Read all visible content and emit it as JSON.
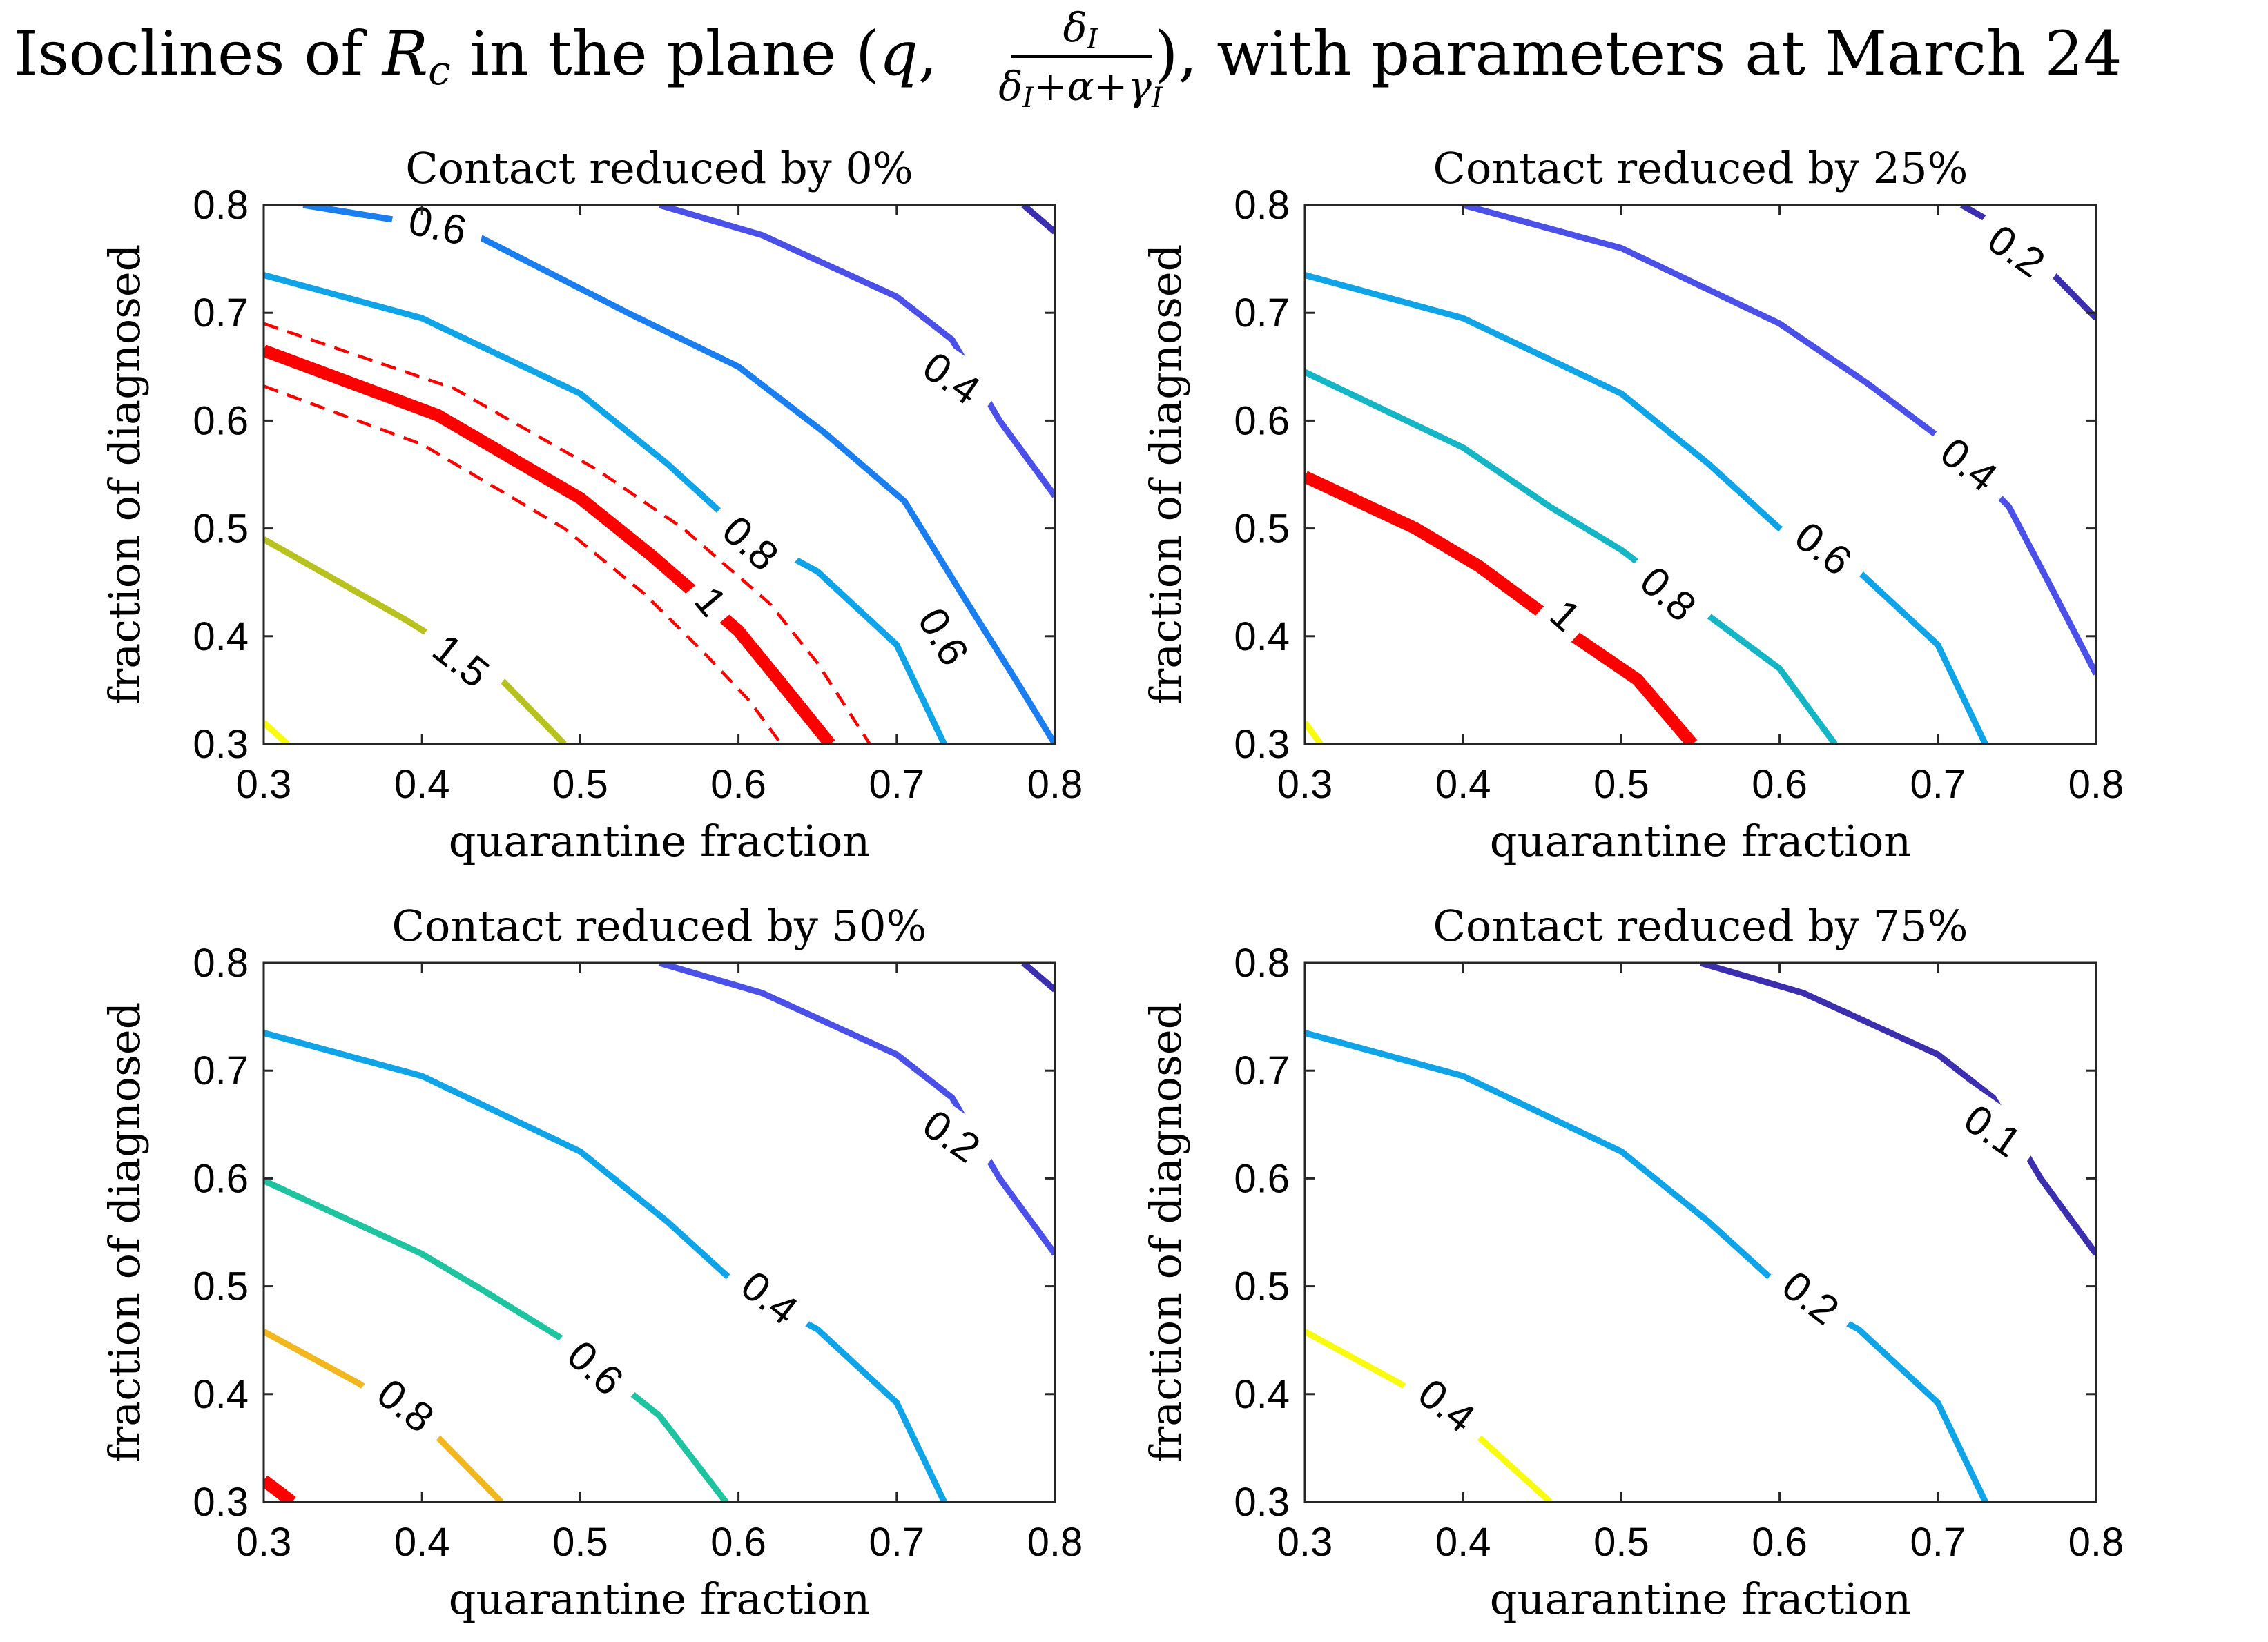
{
  "figure": {
    "title_prefix": "Isoclines of ",
    "title_symbol_R": "R",
    "title_symbol_sub": "c",
    "title_mid": " in the plane (",
    "title_q": "q",
    "title_comma": ", ",
    "frac_numerator": "δ",
    "frac_numerator_sub": "I",
    "frac_denominator": "δ",
    "frac_denominator_sub1": "I",
    "frac_denominator_rest": "+α+γ",
    "frac_denominator_sub2": "I",
    "title_suffix": "), with parameters at March 24"
  },
  "colors": {
    "red": "#ff0000",
    "yellow": "#f9fb0e",
    "olive": "#b8c21e",
    "blue_light": "#0fa3e8",
    "blue": "#1a7ef0",
    "cyan": "#14b6c6",
    "teal": "#1ec3a0",
    "orange": "#f2b61e",
    "violet": "#4a50e8",
    "indigo": "#3b2fb0"
  },
  "chart_data": [
    {
      "type": "contour",
      "title": "Contact reduced by 0%",
      "xlabel": "quarantine fraction",
      "ylabel": "fraction of diagnosed",
      "xlim": [
        0.3,
        0.8
      ],
      "ylim": [
        0.3,
        0.8
      ],
      "xticks": [
        "0.3",
        "0.4",
        "0.5",
        "0.6",
        "0.7",
        "0.8"
      ],
      "yticks": [
        "0.3",
        "0.4",
        "0.5",
        "0.6",
        "0.7",
        "0.8"
      ],
      "contours": [
        {
          "level": "1.5",
          "color": "olive",
          "width": 3,
          "points": [
            [
              0.3,
              0.49
            ],
            [
              0.39,
              0.415
            ],
            [
              0.45,
              0.36
            ],
            [
              0.49,
              0.3
            ]
          ],
          "label": {
            "text": "1.5",
            "x": 0.425,
            "y": 0.378,
            "angle": 38
          }
        },
        {
          "level": "2",
          "color": "yellow",
          "width": 3,
          "points": [
            [
              0.3,
              0.32
            ],
            [
              0.315,
              0.3
            ]
          ],
          "label": null
        },
        {
          "level": "1",
          "color": "red",
          "width": 5,
          "points": [
            [
              0.3,
              0.665
            ],
            [
              0.41,
              0.605
            ],
            [
              0.5,
              0.528
            ],
            [
              0.545,
              0.475
            ],
            [
              0.6,
              0.405
            ],
            [
              0.625,
              0.36
            ],
            [
              0.658,
              0.3
            ]
          ],
          "label": {
            "text": "1",
            "x": 0.583,
            "y": 0.433,
            "angle": 50
          }
        },
        {
          "level": "1 upper",
          "color": "red",
          "width": 2,
          "dash": true,
          "points": [
            [
              0.3,
              0.69
            ],
            [
              0.42,
              0.63
            ],
            [
              0.51,
              0.555
            ],
            [
              0.565,
              0.5
            ],
            [
              0.62,
              0.43
            ],
            [
              0.65,
              0.375
            ],
            [
              0.683,
              0.3
            ]
          ],
          "label": null
        },
        {
          "level": "1 lower",
          "color": "red",
          "width": 2,
          "dash": true,
          "points": [
            [
              0.3,
              0.632
            ],
            [
              0.4,
              0.578
            ],
            [
              0.49,
              0.5
            ],
            [
              0.54,
              0.44
            ],
            [
              0.578,
              0.385
            ],
            [
              0.607,
              0.34
            ],
            [
              0.627,
              0.3
            ]
          ],
          "label": null
        },
        {
          "level": "0.8",
          "color": "blue_light",
          "width": 3,
          "points": [
            [
              0.3,
              0.735
            ],
            [
              0.4,
              0.695
            ],
            [
              0.5,
              0.625
            ],
            [
              0.555,
              0.56
            ],
            [
              0.6,
              0.5
            ],
            [
              0.65,
              0.46
            ],
            [
              0.7,
              0.392
            ],
            [
              0.73,
              0.3
            ]
          ],
          "label": {
            "text": "0.8",
            "x": 0.608,
            "y": 0.487,
            "angle": 42
          }
        },
        {
          "level": "0.6",
          "color": "blue",
          "width": 3,
          "points": [
            [
              0.325,
              0.8
            ],
            [
              0.43,
              0.775
            ],
            [
              0.53,
              0.7
            ],
            [
              0.6,
              0.65
            ],
            [
              0.655,
              0.588
            ],
            [
              0.705,
              0.525
            ],
            [
              0.745,
              0.43
            ],
            [
              0.775,
              0.36
            ],
            [
              0.8,
              0.3
            ]
          ],
          "label": {
            "text": "0.6",
            "x": 0.73,
            "y": 0.4,
            "angle": 60
          }
        },
        {
          "level": "0.6 top",
          "color": "blue",
          "width": 3,
          "points": [
            [
              0.325,
              0.8
            ],
            [
              0.43,
              0.775
            ]
          ],
          "label": {
            "text": "0.6",
            "x": 0.41,
            "y": 0.782,
            "angle": 12
          }
        },
        {
          "level": "0.4",
          "color": "violet",
          "width": 3,
          "points": [
            [
              0.55,
              0.8
            ],
            [
              0.615,
              0.772
            ],
            [
              0.7,
              0.715
            ],
            [
              0.735,
              0.675
            ],
            [
              0.765,
              0.6
            ],
            [
              0.8,
              0.53
            ]
          ],
          "label": {
            "text": "0.4",
            "x": 0.735,
            "y": 0.64,
            "angle": 35
          }
        },
        {
          "level": "0.2",
          "color": "indigo",
          "width": 3,
          "points": [
            [
              0.78,
              0.8
            ],
            [
              0.8,
              0.775
            ]
          ],
          "label": null
        }
      ]
    },
    {
      "type": "contour",
      "title": "Contact reduced by 25%",
      "xlabel": "quarantine fraction",
      "ylabel": "fraction of diagnosed",
      "xlim": [
        0.3,
        0.8
      ],
      "ylim": [
        0.3,
        0.8
      ],
      "xticks": [
        "0.3",
        "0.4",
        "0.5",
        "0.6",
        "0.7",
        "0.8"
      ],
      "yticks": [
        "0.3",
        "0.4",
        "0.5",
        "0.6",
        "0.7",
        "0.8"
      ],
      "contours": [
        {
          "level": "1.5",
          "color": "yellow",
          "width": 3,
          "points": [
            [
              0.3,
              0.32
            ],
            [
              0.31,
              0.3
            ]
          ],
          "label": null
        },
        {
          "level": "1",
          "color": "red",
          "width": 5,
          "points": [
            [
              0.3,
              0.548
            ],
            [
              0.37,
              0.5
            ],
            [
              0.41,
              0.465
            ],
            [
              0.47,
              0.4
            ],
            [
              0.51,
              0.36
            ],
            [
              0.545,
              0.3
            ]
          ],
          "label": {
            "text": "1",
            "x": 0.465,
            "y": 0.42,
            "angle": 42
          }
        },
        {
          "level": "0.8",
          "color": "cyan",
          "width": 3,
          "points": [
            [
              0.3,
              0.645
            ],
            [
              0.4,
              0.575
            ],
            [
              0.455,
              0.52
            ],
            [
              0.5,
              0.48
            ],
            [
              0.545,
              0.43
            ],
            [
              0.6,
              0.37
            ],
            [
              0.635,
              0.3
            ]
          ],
          "label": {
            "text": "0.8",
            "x": 0.53,
            "y": 0.44,
            "angle": 42
          }
        },
        {
          "level": "0.6",
          "color": "blue_light",
          "width": 3,
          "points": [
            [
              0.3,
              0.735
            ],
            [
              0.4,
              0.695
            ],
            [
              0.5,
              0.625
            ],
            [
              0.555,
              0.56
            ],
            [
              0.6,
              0.5
            ],
            [
              0.65,
              0.46
            ],
            [
              0.7,
              0.392
            ],
            [
              0.73,
              0.3
            ]
          ],
          "label": {
            "text": "0.6",
            "x": 0.628,
            "y": 0.482,
            "angle": 38
          }
        },
        {
          "level": "0.4",
          "color": "violet",
          "width": 3,
          "points": [
            [
              0.4,
              0.8
            ],
            [
              0.5,
              0.76
            ],
            [
              0.6,
              0.69
            ],
            [
              0.655,
              0.635
            ],
            [
              0.705,
              0.58
            ],
            [
              0.745,
              0.52
            ],
            [
              0.77,
              0.45
            ],
            [
              0.8,
              0.365
            ]
          ],
          "label": {
            "text": "0.4",
            "x": 0.72,
            "y": 0.56,
            "angle": 38
          }
        },
        {
          "level": "0.2",
          "color": "indigo",
          "width": 3,
          "points": [
            [
              0.715,
              0.8
            ],
            [
              0.745,
              0.775
            ],
            [
              0.77,
              0.74
            ],
            [
              0.8,
              0.695
            ]
          ],
          "label": {
            "text": "0.2",
            "x": 0.75,
            "y": 0.758,
            "angle": 35
          }
        }
      ]
    },
    {
      "type": "contour",
      "title": "Contact reduced by 50%",
      "xlabel": "quarantine fraction",
      "ylabel": "fraction of diagnosed",
      "xlim": [
        0.3,
        0.8
      ],
      "ylim": [
        0.3,
        0.8
      ],
      "xticks": [
        "0.3",
        "0.4",
        "0.5",
        "0.6",
        "0.7",
        "0.8"
      ],
      "yticks": [
        "0.3",
        "0.4",
        "0.5",
        "0.6",
        "0.7",
        "0.8"
      ],
      "contours": [
        {
          "level": "1",
          "color": "red",
          "width": 5,
          "points": [
            [
              0.3,
              0.32
            ],
            [
              0.318,
              0.3
            ]
          ],
          "label": null
        },
        {
          "level": "0.8",
          "color": "orange",
          "width": 3,
          "points": [
            [
              0.3,
              0.458
            ],
            [
              0.36,
              0.41
            ],
            [
              0.41,
              0.36
            ],
            [
              0.45,
              0.3
            ]
          ],
          "label": {
            "text": "0.8",
            "x": 0.39,
            "y": 0.39,
            "angle": 38
          }
        },
        {
          "level": "0.6",
          "color": "teal",
          "width": 3,
          "points": [
            [
              0.3,
              0.598
            ],
            [
              0.4,
              0.53
            ],
            [
              0.44,
              0.495
            ],
            [
              0.49,
              0.45
            ],
            [
              0.55,
              0.38
            ],
            [
              0.592,
              0.3
            ]
          ],
          "label": {
            "text": "0.6",
            "x": 0.51,
            "y": 0.425,
            "angle": 42
          }
        },
        {
          "level": "0.4",
          "color": "blue_light",
          "width": 3,
          "points": [
            [
              0.3,
              0.735
            ],
            [
              0.4,
              0.695
            ],
            [
              0.5,
              0.625
            ],
            [
              0.555,
              0.56
            ],
            [
              0.6,
              0.5
            ],
            [
              0.65,
              0.46
            ],
            [
              0.7,
              0.392
            ],
            [
              0.73,
              0.3
            ]
          ],
          "label": {
            "text": "0.4",
            "x": 0.62,
            "y": 0.49,
            "angle": 38
          }
        },
        {
          "level": "0.2",
          "color": "violet",
          "width": 3,
          "points": [
            [
              0.55,
              0.8
            ],
            [
              0.615,
              0.772
            ],
            [
              0.7,
              0.715
            ],
            [
              0.735,
              0.675
            ],
            [
              0.765,
              0.6
            ],
            [
              0.8,
              0.53
            ]
          ],
          "label": {
            "text": "0.2",
            "x": 0.735,
            "y": 0.64,
            "angle": 35
          }
        },
        {
          "level": "0.1",
          "color": "indigo",
          "width": 3,
          "points": [
            [
              0.78,
              0.8
            ],
            [
              0.8,
              0.775
            ]
          ],
          "label": null
        }
      ]
    },
    {
      "type": "contour",
      "title": "Contact reduced by 75%",
      "xlabel": "quarantine fraction",
      "ylabel": "fraction of diagnosed",
      "xlim": [
        0.3,
        0.8
      ],
      "ylim": [
        0.3,
        0.8
      ],
      "xticks": [
        "0.3",
        "0.4",
        "0.5",
        "0.6",
        "0.7",
        "0.8"
      ],
      "yticks": [
        "0.3",
        "0.4",
        "0.5",
        "0.6",
        "0.7",
        "0.8"
      ],
      "contours": [
        {
          "level": "0.4",
          "color": "yellow",
          "width": 3,
          "points": [
            [
              0.3,
              0.458
            ],
            [
              0.36,
              0.41
            ],
            [
              0.41,
              0.36
            ],
            [
              0.455,
              0.3
            ]
          ],
          "label": {
            "text": "0.4",
            "x": 0.39,
            "y": 0.39,
            "angle": 38
          }
        },
        {
          "level": "0.2",
          "color": "blue_light",
          "width": 3,
          "points": [
            [
              0.3,
              0.735
            ],
            [
              0.4,
              0.695
            ],
            [
              0.5,
              0.625
            ],
            [
              0.555,
              0.56
            ],
            [
              0.6,
              0.5
            ],
            [
              0.65,
              0.46
            ],
            [
              0.7,
              0.392
            ],
            [
              0.73,
              0.3
            ]
          ],
          "label": {
            "text": "0.2",
            "x": 0.62,
            "y": 0.49,
            "angle": 38
          }
        },
        {
          "level": "0.1",
          "color": "indigo",
          "width": 3,
          "points": [
            [
              0.55,
              0.8
            ],
            [
              0.615,
              0.772
            ],
            [
              0.7,
              0.715
            ],
            [
              0.735,
              0.675
            ],
            [
              0.765,
              0.6
            ],
            [
              0.8,
              0.53
            ]
          ],
          "label": {
            "text": "0.1",
            "x": 0.735,
            "y": 0.645,
            "angle": 35
          }
        }
      ]
    }
  ]
}
